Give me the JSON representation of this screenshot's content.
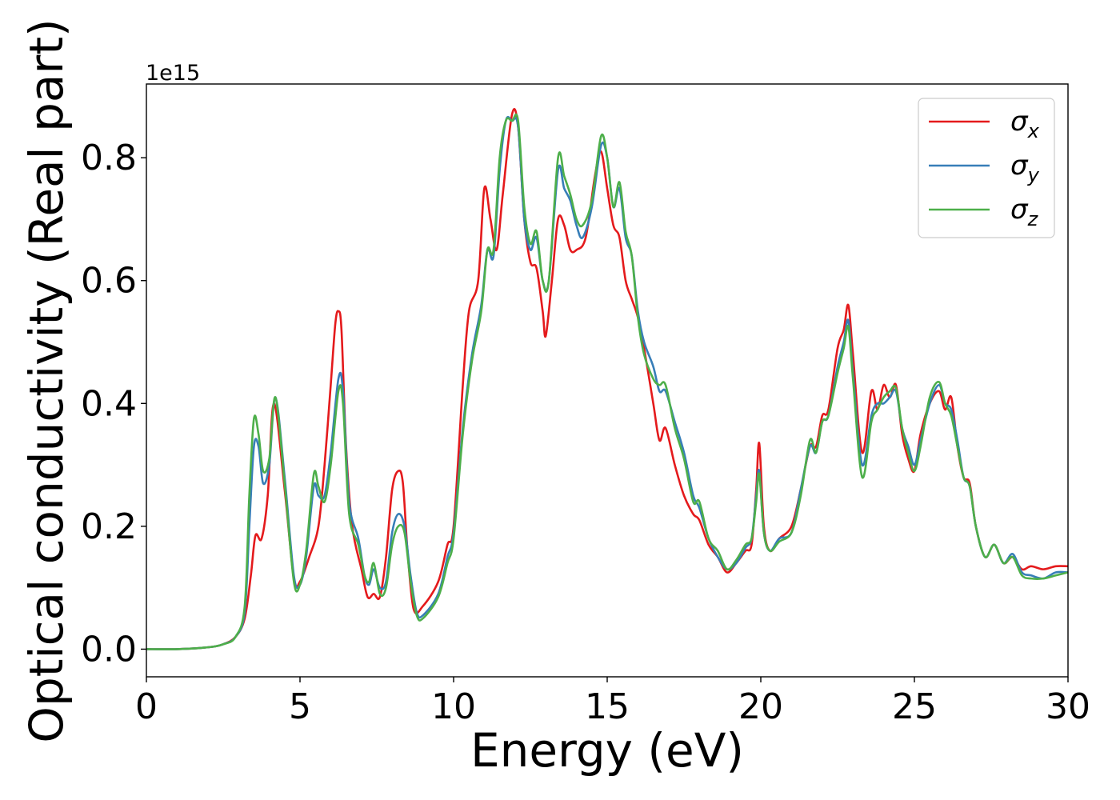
{
  "chart_data": {
    "type": "line",
    "xlabel": "Energy (eV)",
    "ylabel": "Optical conductivity (Real part)",
    "y_offset_text": "1e15",
    "xlim": [
      0,
      30
    ],
    "ylim": [
      -0.045,
      0.92
    ],
    "x_scale": 1,
    "y_scale_factor": 1000000000000000.0,
    "grid": false,
    "legend_position": "top-right",
    "x_ticks": [
      0,
      5,
      10,
      15,
      20,
      25,
      30
    ],
    "x_tick_labels": [
      "0",
      "5",
      "10",
      "15",
      "20",
      "25",
      "30"
    ],
    "y_ticks": [
      0.0,
      0.2,
      0.4,
      0.6,
      0.8
    ],
    "y_tick_labels": [
      "0.0",
      "0.2",
      "0.4",
      "0.6",
      "0.8"
    ],
    "series": [
      {
        "name": "σx",
        "symbol": "σ",
        "subscript": "x",
        "color": "#e41a1c",
        "x": [
          0,
          1,
          2,
          2.5,
          2.9,
          3.2,
          3.4,
          3.55,
          3.75,
          3.95,
          4.15,
          4.5,
          4.8,
          5.0,
          5.3,
          5.6,
          5.8,
          6.0,
          6.15,
          6.25,
          6.35,
          6.5,
          6.7,
          7.0,
          7.2,
          7.4,
          7.6,
          7.8,
          8.0,
          8.2,
          8.35,
          8.5,
          8.7,
          9.0,
          9.5,
          9.8,
          10.0,
          10.3,
          10.5,
          10.8,
          11.0,
          11.2,
          11.4,
          11.6,
          11.9,
          12.1,
          12.3,
          12.5,
          12.7,
          12.9,
          13.0,
          13.2,
          13.4,
          13.6,
          13.8,
          14.0,
          14.3,
          14.6,
          14.8,
          15.0,
          15.2,
          15.4,
          15.6,
          15.8,
          16.0,
          16.2,
          16.5,
          16.7,
          16.9,
          17.2,
          17.5,
          17.8,
          18.0,
          18.3,
          18.6,
          18.9,
          19.2,
          19.5,
          19.7,
          19.85,
          19.95,
          20.1,
          20.3,
          20.6,
          21.0,
          21.3,
          21.6,
          21.8,
          22.0,
          22.2,
          22.5,
          22.7,
          22.85,
          23.0,
          23.3,
          23.6,
          23.8,
          24.0,
          24.2,
          24.4,
          24.6,
          24.8,
          25.0,
          25.2,
          25.5,
          25.8,
          26.0,
          26.2,
          26.4,
          26.6,
          26.8,
          27.0,
          27.3,
          27.6,
          27.9,
          28.2,
          28.5,
          28.8,
          29.2,
          29.6,
          30.0
        ],
        "y": [
          0.0,
          0.0,
          0.003,
          0.008,
          0.02,
          0.05,
          0.12,
          0.185,
          0.18,
          0.25,
          0.4,
          0.26,
          0.115,
          0.11,
          0.15,
          0.2,
          0.3,
          0.43,
          0.53,
          0.55,
          0.52,
          0.33,
          0.2,
          0.13,
          0.085,
          0.09,
          0.085,
          0.15,
          0.26,
          0.29,
          0.27,
          0.16,
          0.065,
          0.07,
          0.11,
          0.17,
          0.2,
          0.43,
          0.55,
          0.6,
          0.75,
          0.7,
          0.65,
          0.74,
          0.87,
          0.85,
          0.7,
          0.63,
          0.62,
          0.55,
          0.51,
          0.6,
          0.7,
          0.69,
          0.65,
          0.65,
          0.67,
          0.77,
          0.81,
          0.75,
          0.69,
          0.67,
          0.6,
          0.57,
          0.54,
          0.49,
          0.4,
          0.34,
          0.36,
          0.3,
          0.25,
          0.22,
          0.21,
          0.17,
          0.15,
          0.125,
          0.14,
          0.16,
          0.17,
          0.26,
          0.335,
          0.2,
          0.16,
          0.18,
          0.2,
          0.26,
          0.33,
          0.33,
          0.38,
          0.39,
          0.49,
          0.52,
          0.56,
          0.48,
          0.32,
          0.42,
          0.39,
          0.43,
          0.41,
          0.43,
          0.35,
          0.31,
          0.29,
          0.35,
          0.4,
          0.42,
          0.39,
          0.41,
          0.33,
          0.28,
          0.27,
          0.2,
          0.15,
          0.17,
          0.14,
          0.15,
          0.13,
          0.135,
          0.13,
          0.135,
          0.135
        ]
      },
      {
        "name": "σy",
        "symbol": "σ",
        "subscript": "y",
        "color": "#377eb8",
        "x": [
          0,
          1,
          2,
          2.5,
          2.9,
          3.2,
          3.35,
          3.5,
          3.65,
          3.8,
          4.0,
          4.2,
          4.5,
          4.8,
          5.0,
          5.2,
          5.45,
          5.6,
          5.8,
          6.0,
          6.25,
          6.4,
          6.6,
          6.9,
          7.1,
          7.25,
          7.4,
          7.6,
          7.8,
          8.0,
          8.2,
          8.4,
          8.6,
          8.8,
          9.0,
          9.5,
          9.8,
          10.0,
          10.3,
          10.6,
          10.9,
          11.1,
          11.3,
          11.5,
          11.7,
          11.9,
          12.1,
          12.3,
          12.5,
          12.7,
          12.9,
          13.1,
          13.4,
          13.6,
          13.8,
          14.0,
          14.2,
          14.5,
          14.8,
          15.0,
          15.2,
          15.4,
          15.6,
          15.8,
          16.0,
          16.2,
          16.5,
          16.7,
          16.9,
          17.2,
          17.5,
          17.8,
          18.0,
          18.3,
          18.6,
          18.9,
          19.2,
          19.5,
          19.7,
          19.85,
          19.95,
          20.1,
          20.3,
          20.6,
          21.0,
          21.3,
          21.6,
          21.8,
          22.0,
          22.2,
          22.5,
          22.7,
          22.85,
          23.0,
          23.3,
          23.6,
          23.8,
          24.0,
          24.2,
          24.4,
          24.6,
          24.8,
          25.0,
          25.2,
          25.5,
          25.8,
          26.0,
          26.2,
          26.4,
          26.6,
          26.8,
          27.0,
          27.3,
          27.6,
          27.9,
          28.2,
          28.5,
          28.8,
          29.2,
          29.6,
          30.0
        ],
        "y": [
          0.0,
          0.0,
          0.003,
          0.008,
          0.02,
          0.06,
          0.2,
          0.33,
          0.33,
          0.27,
          0.3,
          0.41,
          0.28,
          0.12,
          0.105,
          0.15,
          0.265,
          0.25,
          0.25,
          0.32,
          0.44,
          0.42,
          0.24,
          0.18,
          0.12,
          0.105,
          0.13,
          0.1,
          0.11,
          0.19,
          0.22,
          0.2,
          0.12,
          0.06,
          0.055,
          0.09,
          0.15,
          0.19,
          0.36,
          0.48,
          0.56,
          0.65,
          0.64,
          0.78,
          0.86,
          0.86,
          0.85,
          0.7,
          0.65,
          0.67,
          0.6,
          0.6,
          0.78,
          0.75,
          0.73,
          0.69,
          0.67,
          0.72,
          0.82,
          0.8,
          0.72,
          0.75,
          0.67,
          0.64,
          0.55,
          0.5,
          0.46,
          0.42,
          0.42,
          0.37,
          0.32,
          0.25,
          0.23,
          0.18,
          0.15,
          0.13,
          0.14,
          0.165,
          0.18,
          0.25,
          0.29,
          0.19,
          0.16,
          0.18,
          0.19,
          0.26,
          0.33,
          0.32,
          0.37,
          0.38,
          0.46,
          0.5,
          0.535,
          0.45,
          0.3,
          0.38,
          0.4,
          0.4,
          0.41,
          0.42,
          0.36,
          0.33,
          0.3,
          0.34,
          0.4,
          0.43,
          0.4,
          0.39,
          0.34,
          0.28,
          0.265,
          0.2,
          0.15,
          0.17,
          0.14,
          0.155,
          0.125,
          0.12,
          0.115,
          0.125,
          0.125
        ]
      },
      {
        "name": "σz",
        "symbol": "σ",
        "subscript": "z",
        "color": "#4daf4a",
        "x": [
          0,
          1,
          2,
          2.5,
          2.9,
          3.2,
          3.35,
          3.5,
          3.65,
          3.8,
          4.0,
          4.2,
          4.5,
          4.8,
          5.0,
          5.2,
          5.45,
          5.6,
          5.8,
          6.0,
          6.25,
          6.4,
          6.6,
          6.9,
          7.1,
          7.25,
          7.4,
          7.6,
          7.8,
          8.0,
          8.2,
          8.4,
          8.6,
          8.8,
          9.0,
          9.5,
          9.8,
          10.0,
          10.3,
          10.6,
          10.9,
          11.1,
          11.3,
          11.5,
          11.7,
          11.9,
          12.1,
          12.3,
          12.5,
          12.7,
          12.9,
          13.1,
          13.4,
          13.6,
          13.8,
          14.0,
          14.2,
          14.5,
          14.8,
          15.0,
          15.2,
          15.4,
          15.6,
          15.8,
          16.0,
          16.2,
          16.5,
          16.7,
          16.9,
          17.2,
          17.5,
          17.8,
          18.0,
          18.3,
          18.6,
          18.9,
          19.2,
          19.5,
          19.7,
          19.85,
          19.95,
          20.1,
          20.3,
          20.6,
          21.0,
          21.3,
          21.6,
          21.8,
          22.0,
          22.2,
          22.5,
          22.7,
          22.85,
          23.0,
          23.3,
          23.6,
          23.8,
          24.0,
          24.2,
          24.4,
          24.6,
          24.8,
          25.0,
          25.2,
          25.5,
          25.8,
          26.0,
          26.2,
          26.4,
          26.6,
          26.8,
          27.0,
          27.3,
          27.6,
          27.9,
          28.2,
          28.5,
          28.8,
          29.2,
          29.6,
          30.0
        ],
        "y": [
          0.0,
          0.0,
          0.003,
          0.008,
          0.02,
          0.07,
          0.25,
          0.375,
          0.35,
          0.29,
          0.31,
          0.41,
          0.27,
          0.11,
          0.105,
          0.16,
          0.285,
          0.265,
          0.24,
          0.3,
          0.42,
          0.4,
          0.22,
          0.17,
          0.12,
          0.11,
          0.14,
          0.09,
          0.1,
          0.17,
          0.2,
          0.19,
          0.11,
          0.055,
          0.05,
          0.085,
          0.14,
          0.18,
          0.35,
          0.47,
          0.55,
          0.65,
          0.65,
          0.8,
          0.86,
          0.86,
          0.86,
          0.72,
          0.66,
          0.68,
          0.6,
          0.6,
          0.8,
          0.77,
          0.74,
          0.7,
          0.69,
          0.73,
          0.835,
          0.8,
          0.72,
          0.76,
          0.68,
          0.64,
          0.54,
          0.48,
          0.44,
          0.43,
          0.43,
          0.36,
          0.31,
          0.24,
          0.24,
          0.18,
          0.16,
          0.13,
          0.145,
          0.17,
          0.18,
          0.24,
          0.285,
          0.19,
          0.16,
          0.175,
          0.19,
          0.25,
          0.34,
          0.32,
          0.37,
          0.38,
          0.45,
          0.49,
          0.525,
          0.44,
          0.28,
          0.37,
          0.39,
          0.41,
          0.42,
          0.425,
          0.36,
          0.32,
          0.29,
          0.33,
          0.41,
          0.435,
          0.4,
          0.38,
          0.33,
          0.28,
          0.265,
          0.2,
          0.15,
          0.17,
          0.14,
          0.15,
          0.12,
          0.115,
          0.115,
          0.12,
          0.125
        ]
      }
    ]
  }
}
